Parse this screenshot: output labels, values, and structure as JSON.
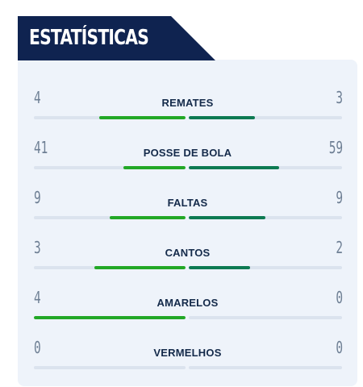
{
  "header": {
    "title": "ESTATÍSTICAS"
  },
  "colors": {
    "home_bar": "#22a826",
    "away_bar": "#0d7a52",
    "track": "#dbe3ee",
    "header_bg": "#0f2350"
  },
  "stats": [
    {
      "label": "REMATES",
      "home": "4",
      "away": "3",
      "home_fill": 0.57,
      "away_fill": 0.43
    },
    {
      "label": "POSSE DE BOLA",
      "home": "41",
      "away": "59",
      "home_fill": 0.41,
      "away_fill": 0.59
    },
    {
      "label": "FALTAS",
      "home": "9",
      "away": "9",
      "home_fill": 0.5,
      "away_fill": 0.5
    },
    {
      "label": "CANTOS",
      "home": "3",
      "away": "2",
      "home_fill": 0.6,
      "away_fill": 0.4
    },
    {
      "label": "AMARELOS",
      "home": "4",
      "away": "0",
      "home_fill": 1.0,
      "away_fill": 0.0
    },
    {
      "label": "VERMELHOS",
      "home": "0",
      "away": "0",
      "home_fill": 0.0,
      "away_fill": 0.0
    }
  ]
}
